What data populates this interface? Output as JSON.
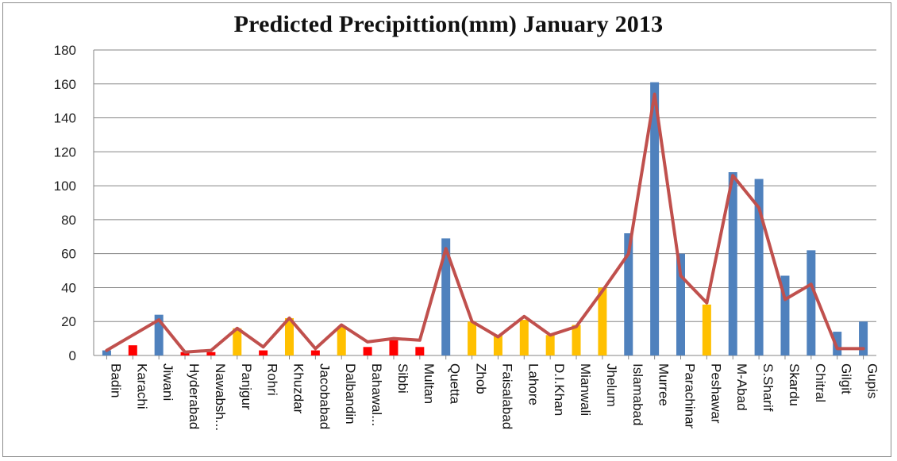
{
  "chart_data": {
    "type": "bar",
    "title": "Predicted Precipittion(mm) January 2013",
    "xlabel": "",
    "ylabel": "",
    "ylim": [
      0,
      180
    ],
    "yticks": [
      0,
      20,
      40,
      60,
      80,
      100,
      120,
      140,
      160,
      180
    ],
    "grid": true,
    "legend": "none",
    "categories": [
      "Badin",
      "Karachi",
      "Jiwani",
      "Hyderabad",
      "Nawabsh...",
      "Panjgur",
      "Rohri",
      "Khuzdar",
      "Jacobabad",
      "Dalbandin",
      "Bahawal...",
      "Sibbi",
      "Multan",
      "Quetta",
      "Zhob",
      "Faisalabad",
      "Lahore",
      "D.I.Khan",
      "Mianwali",
      "Jhelum",
      "Islamabad",
      "Murree",
      "Parachinar",
      "Peshawar",
      "M-Abad",
      "S.Sharif",
      "Skardu",
      "Chitral",
      "Gilgit",
      "Gupis"
    ],
    "values": [
      3,
      6,
      24,
      2,
      2,
      16,
      3,
      22,
      3,
      17,
      5,
      9,
      5,
      69,
      20,
      12,
      21,
      12,
      18,
      40,
      72,
      161,
      60,
      30,
      108,
      104,
      47,
      62,
      14,
      20
    ],
    "bar_colors": [
      "#4f81bd",
      "#ff0000",
      "#4f81bd",
      "#ff0000",
      "#ff0000",
      "#ffc000",
      "#ff0000",
      "#ffc000",
      "#ff0000",
      "#ffc000",
      "#ff0000",
      "#ff0000",
      "#ff0000",
      "#4f81bd",
      "#ffc000",
      "#ffc000",
      "#ffc000",
      "#ffc000",
      "#ffc000",
      "#ffc000",
      "#4f81bd",
      "#4f81bd",
      "#4f81bd",
      "#ffc000",
      "#4f81bd",
      "#4f81bd",
      "#4f81bd",
      "#4f81bd",
      "#4f81bd",
      "#4f81bd"
    ],
    "line_values": [
      3,
      12,
      21,
      2,
      3,
      16,
      5,
      22,
      4,
      18,
      8,
      10,
      9,
      63,
      20,
      11,
      23,
      12,
      17,
      38,
      60,
      154,
      47,
      31,
      106,
      87,
      33,
      42,
      4,
      4
    ],
    "line_color": "#c0504d",
    "gridline_color": "#868686"
  }
}
